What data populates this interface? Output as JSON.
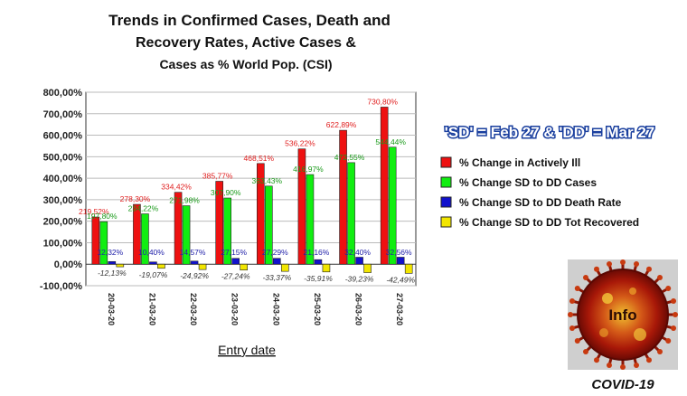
{
  "chart_data": {
    "type": "bar",
    "title_lines": [
      "Trends in Confirmed Cases, Death and",
      "Recovery Rates, Active Cases &",
      "Cases as % World Pop. (CSI)"
    ],
    "xlabel": "Entry date",
    "categories": [
      "20-03-20",
      "21-03-20",
      "22-03-20",
      "23-03-20",
      "24-03-20",
      "25-03-20",
      "26-03-20",
      "27-03-20"
    ],
    "ylim": [
      -100,
      800
    ],
    "yticks": [
      -100,
      0,
      100,
      200,
      300,
      400,
      500,
      600,
      700,
      800
    ],
    "ytick_labels": [
      "-100,00%",
      "0,00%",
      "100,00%",
      "200,00%",
      "300,00%",
      "400,00%",
      "500,00%",
      "600,00%",
      "700,00%",
      "800,00%"
    ],
    "grid": true,
    "legend_position": "right",
    "series": [
      {
        "name": "% Change in Actively Ill",
        "color": "#ee1111",
        "values": [
          219.52,
          278.3,
          334.42,
          385.77,
          468.51,
          536.22,
          622.89,
          730.8
        ],
        "labels": [
          "219,52%",
          "278,30%",
          "334,42%",
          "385,77%",
          "468,51%",
          "536,22%",
          "622,89%",
          "730,80%"
        ]
      },
      {
        "name": "% Change SD to DD Cases",
        "color": "#11ee11",
        "values": [
          197.8,
          234.22,
          271.98,
          307.9,
          363.43,
          416.97,
          472.55,
          544.44
        ],
        "labels": [
          "197,80%",
          "234,22%",
          "271,98%",
          "307,90%",
          "363,43%",
          "416,97%",
          "472,55%",
          "544,44%"
        ]
      },
      {
        "name": "% Change SD to DD Death Rate",
        "color": "#1111cc",
        "values": [
          12.32,
          10.4,
          14.57,
          27.15,
          27.29,
          21.16,
          32.4,
          32.56
        ],
        "labels": [
          "12,32%",
          "10,40%",
          "14,57%",
          "27,15%",
          "27,29%",
          "21,16%",
          "32,40%",
          "32,56%"
        ]
      },
      {
        "name": "% Change SD to DD Tot Recovered",
        "color": "#f2e600",
        "values": [
          -12.13,
          -19.07,
          -24.92,
          -27.24,
          -33.37,
          -35.91,
          -39.23,
          -42.49
        ],
        "labels": [
          "-12,13%",
          "-19,07%",
          "-24,92%",
          "-27,24%",
          "-33,37%",
          "-35,91%",
          "-39,23%",
          "-42,49%"
        ]
      }
    ]
  },
  "banner": "'SD' = Feb 27 & 'DD' = Mar 27",
  "logo": {
    "text": "Info",
    "caption": "COVID-19"
  }
}
